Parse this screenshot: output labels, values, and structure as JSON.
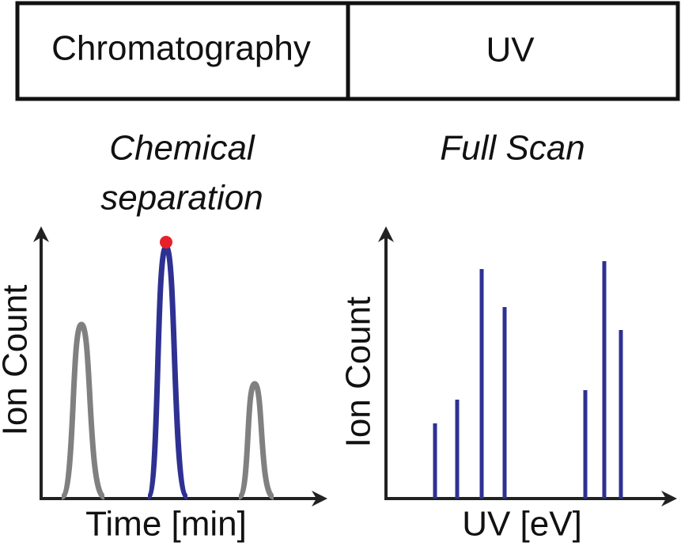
{
  "header": {
    "left": "Chromatography",
    "right": "UV"
  },
  "panels": [
    {
      "title": [
        "Chemical",
        "separation"
      ],
      "y_label": "Ion Count",
      "x_label": "Time [min]"
    },
    {
      "title": [
        "Full Scan"
      ],
      "y_label": "Ion Count",
      "x_label": "UV [eV]"
    }
  ]
}
